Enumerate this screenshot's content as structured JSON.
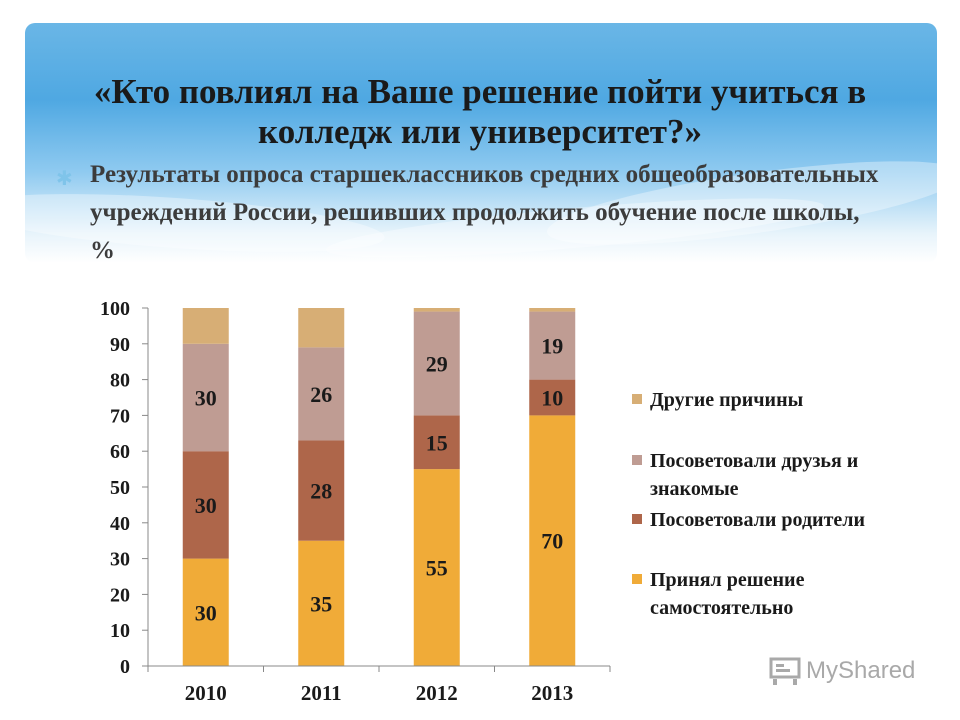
{
  "slide": {
    "title": "«Кто повлиял на Ваше решение пойти учиться в колледж или университет?»",
    "subtitle": "Результаты опроса старшеклассников средних общеобразовательных учреждений России, решивших продолжить обучение после школы, %",
    "bullet_icon": "asterisk-bullet-icon",
    "banner_color": "#4fa8e2",
    "watermark": "MyShared",
    "watermark_icon": "classroom-board-icon"
  },
  "chart_data": {
    "type": "bar",
    "stacked": true,
    "categories": [
      "2010",
      "2011",
      "2012",
      "2013"
    ],
    "series": [
      {
        "name": "Принял решение самостоятельно",
        "values": [
          30,
          35,
          55,
          70
        ],
        "color": "#f0ab38",
        "labels": [
          "30",
          "35",
          "55",
          "70"
        ]
      },
      {
        "name": "Посоветовали родители",
        "values": [
          30,
          28,
          15,
          10
        ],
        "color": "#ae664a",
        "labels": [
          "30",
          "28",
          "15",
          "10"
        ]
      },
      {
        "name": "Посоветовали друзья и знакомые",
        "values": [
          30,
          26,
          29,
          19
        ],
        "color": "#bf9c93",
        "labels": [
          "30",
          "26",
          "29",
          "19"
        ]
      },
      {
        "name": "Другие причины",
        "values": [
          10,
          11,
          1,
          1
        ],
        "color": "#d7ae75",
        "labels": [
          "",
          "",
          "",
          ""
        ]
      }
    ],
    "legend_order": [
      3,
      2,
      1,
      0
    ],
    "ylim": [
      0,
      100
    ],
    "yticks": [
      "0",
      "10",
      "20",
      "30",
      "40",
      "50",
      "60",
      "70",
      "80",
      "90",
      "100"
    ],
    "grid": false,
    "legend_position": "right",
    "title": "",
    "xlabel": "",
    "ylabel": ""
  }
}
